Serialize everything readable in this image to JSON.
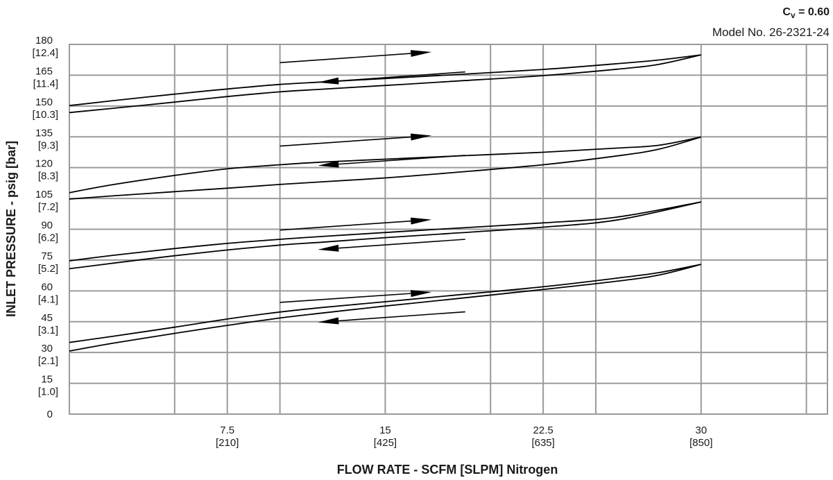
{
  "header": {
    "cv_symbol": "C",
    "cv_subscript": "v",
    "cv_value": " = 0.60",
    "model": "Model No. 26-2321-24"
  },
  "chart_data": {
    "type": "line",
    "xlabel": "FLOW RATE - SCFM [SLPM] Nitrogen",
    "ylabel": "INLET PRESSURE - psig [bar]",
    "xlim": [
      0,
      36
    ],
    "ylim": [
      0,
      180
    ],
    "grid": true,
    "x_minor_gridlines": [
      5,
      10,
      20,
      25,
      35
    ],
    "x_ticks": [
      {
        "value": 7.5,
        "label": "7.5",
        "sublabel": "[210]"
      },
      {
        "value": 15,
        "label": "15",
        "sublabel": "[425]"
      },
      {
        "value": 22.5,
        "label": "22.5",
        "sublabel": "[635]"
      },
      {
        "value": 30,
        "label": "30",
        "sublabel": "[850]"
      }
    ],
    "y_ticks": [
      {
        "value": 0,
        "label": "0",
        "sublabel": ""
      },
      {
        "value": 15,
        "label": "15",
        "sublabel": "[1.0]"
      },
      {
        "value": 30,
        "label": "30",
        "sublabel": "[2.1]"
      },
      {
        "value": 45,
        "label": "45",
        "sublabel": "[3.1]"
      },
      {
        "value": 60,
        "label": "60",
        "sublabel": "[4.1]"
      },
      {
        "value": 75,
        "label": "75",
        "sublabel": "[5.2]"
      },
      {
        "value": 90,
        "label": "90",
        "sublabel": "[6.2]"
      },
      {
        "value": 105,
        "label": "105",
        "sublabel": "[7.2]"
      },
      {
        "value": 120,
        "label": "120",
        "sublabel": "[8.3]"
      },
      {
        "value": 135,
        "label": "135",
        "sublabel": "[9.3]"
      },
      {
        "value": 150,
        "label": "150",
        "sublabel": "[10.3]"
      },
      {
        "value": 165,
        "label": "165",
        "sublabel": "[11.4]"
      },
      {
        "value": 180,
        "label": "180",
        "sublabel": "[12.4]"
      }
    ],
    "series": [
      {
        "x": [
          0,
          2,
          5,
          7.5,
          10,
          12,
          15,
          18,
          22.5,
          26,
          28,
          30
        ],
        "y": [
          34.9,
          37.8,
          42.3,
          46.3,
          49.7,
          51.9,
          54.7,
          57.6,
          62.0,
          66.2,
          68.9,
          72.9
        ]
      },
      {
        "x": [
          0,
          2,
          5,
          7.5,
          10,
          12,
          15,
          18,
          22.5,
          26,
          28,
          30
        ],
        "y": [
          30.7,
          34.4,
          39.3,
          43.2,
          46.8,
          49.2,
          52.6,
          55.8,
          60.7,
          64.7,
          67.7,
          72.9
        ]
      },
      {
        "x": [
          0,
          2,
          5,
          7.5,
          10,
          12,
          15,
          18,
          22.5,
          26,
          30
        ],
        "y": [
          74.6,
          77.2,
          80.6,
          83.1,
          85.1,
          86.5,
          88.4,
          90.3,
          93.1,
          95.9,
          103.3
        ]
      },
      {
        "x": [
          0,
          2,
          5,
          7.5,
          10,
          12,
          15,
          18,
          22.5,
          26,
          30
        ],
        "y": [
          70.8,
          73.4,
          77.1,
          79.9,
          82.3,
          83.7,
          85.9,
          87.9,
          91.0,
          94.5,
          103.3
        ]
      },
      {
        "x": [
          0,
          2,
          5,
          7.5,
          10,
          12,
          15,
          18,
          22.5,
          26,
          28,
          30
        ],
        "y": [
          107.8,
          111.6,
          116.2,
          119.4,
          121.4,
          122.7,
          124.1,
          125.5,
          127.5,
          129.5,
          130.9,
          134.9
        ]
      },
      {
        "x": [
          0,
          2,
          5,
          7.5,
          10,
          12,
          15,
          18,
          22.5,
          26,
          28,
          30
        ],
        "y": [
          104.7,
          106.2,
          108.3,
          110.0,
          111.8,
          113.1,
          115.0,
          117.4,
          121.4,
          125.7,
          129.0,
          134.9
        ]
      },
      {
        "x": [
          0,
          2,
          5,
          7.5,
          10,
          12,
          15,
          18,
          22.5,
          26,
          28,
          30
        ],
        "y": [
          150.2,
          152.5,
          155.8,
          158.3,
          160.5,
          161.7,
          163.4,
          165.1,
          167.8,
          170.6,
          172.4,
          174.9
        ]
      },
      {
        "x": [
          0,
          2,
          5,
          7.5,
          10,
          12,
          15,
          18,
          22.5,
          26,
          28,
          30
        ],
        "y": [
          146.8,
          148.8,
          151.9,
          154.6,
          156.9,
          158.2,
          160.0,
          161.9,
          164.8,
          167.9,
          170.3,
          174.9
        ]
      }
    ],
    "arrows": [
      {
        "direction": "right",
        "from": [
          10,
          54.4
        ],
        "to": [
          17.2,
          59.4
        ]
      },
      {
        "direction": "left",
        "from": [
          18.8,
          49.8
        ],
        "to": [
          11.8,
          44.7
        ]
      },
      {
        "direction": "right",
        "from": [
          10,
          89.6
        ],
        "to": [
          17.2,
          94.7
        ]
      },
      {
        "direction": "left",
        "from": [
          18.8,
          85.1
        ],
        "to": [
          11.8,
          80.1
        ]
      },
      {
        "direction": "right",
        "from": [
          10,
          130.5
        ],
        "to": [
          17.2,
          135.6
        ]
      },
      {
        "direction": "left",
        "from": [
          18.8,
          126.0
        ],
        "to": [
          11.8,
          121.0
        ]
      },
      {
        "direction": "right",
        "from": [
          10,
          171.1
        ],
        "to": [
          17.2,
          176.3
        ]
      },
      {
        "direction": "left",
        "from": [
          18.8,
          166.6
        ],
        "to": [
          11.8,
          161.5
        ]
      }
    ]
  }
}
